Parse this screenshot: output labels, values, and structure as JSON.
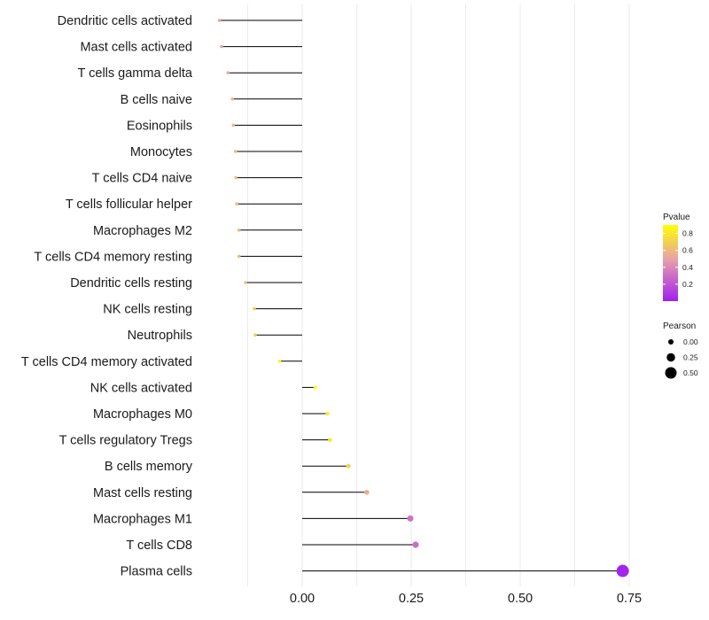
{
  "chart_data": {
    "type": "lollipop",
    "title": "",
    "xlabel": "",
    "ylabel": "",
    "xlim": [
      -0.2,
      0.8
    ],
    "xticks": [
      0.0,
      0.25,
      0.5,
      0.75
    ],
    "xtick_labels": [
      "0.00",
      "0.25",
      "0.50",
      "0.75"
    ],
    "grid": true,
    "categories": [
      "Dendritic cells activated",
      "Mast cells activated",
      "T cells gamma delta",
      "B cells naive",
      "Eosinophils",
      "Monocytes",
      "T cells CD4 naive",
      "T cells follicular helper",
      "Macrophages M2",
      "T cells CD4 memory resting",
      "Dendritic cells resting",
      "NK cells resting",
      "Neutrophils",
      "T cells CD4 memory activated",
      "NK cells activated",
      "Macrophages M0",
      "T cells regulatory  Tregs ",
      "B cells memory",
      "Mast cells resting",
      "Macrophages M1",
      "T cells CD8",
      "Plasma cells"
    ],
    "pearson": [
      -0.19,
      -0.185,
      -0.17,
      -0.16,
      -0.158,
      -0.153,
      -0.152,
      -0.15,
      -0.145,
      -0.145,
      -0.13,
      -0.11,
      -0.108,
      -0.052,
      0.03,
      0.058,
      0.064,
      0.106,
      0.148,
      0.248,
      0.26,
      0.735
    ],
    "pvalue": [
      0.52,
      0.52,
      0.55,
      0.58,
      0.58,
      0.6,
      0.6,
      0.6,
      0.6,
      0.6,
      0.62,
      0.7,
      0.7,
      0.85,
      0.9,
      0.83,
      0.82,
      0.72,
      0.55,
      0.32,
      0.3,
      0.02
    ],
    "legend": {
      "color_title": "Pvalue",
      "color_ticks": [
        0.8,
        0.6,
        0.4,
        0.2
      ],
      "color_tick_labels": [
        "0.8",
        "0.6",
        "0.4",
        "0.2"
      ],
      "color_range": [
        0.0,
        0.9
      ],
      "color_low": "#a020f0",
      "color_high": "#ffff00",
      "size_title": "Pearson",
      "size_breaks": [
        0.0,
        0.25,
        0.5
      ],
      "size_labels": [
        "0.00",
        "0.25",
        "0.50"
      ],
      "position": "right"
    }
  }
}
